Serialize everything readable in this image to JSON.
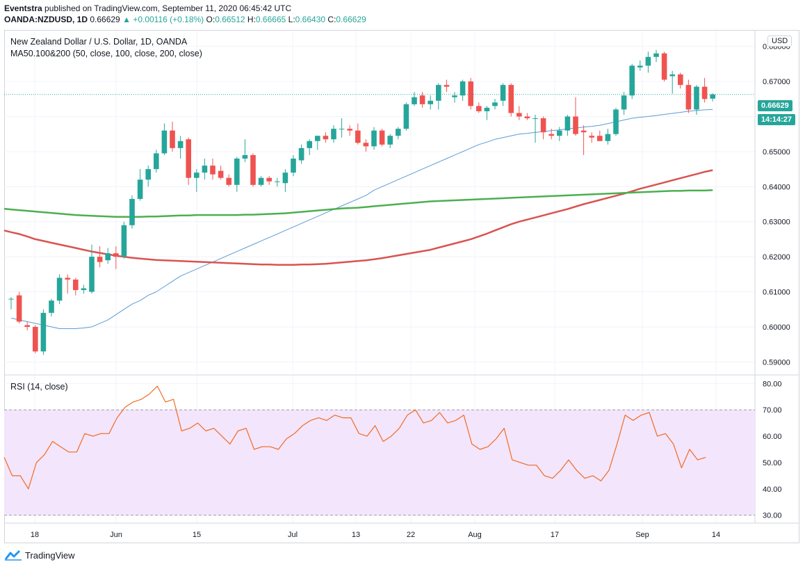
{
  "header": {
    "publisher": "Eventstra",
    "published_text": "published on TradingView.com, September 11, 2020 06:45:42 UTC",
    "symbol": "OANDA:NZDUSD, 1D",
    "last": "0.66629",
    "change_arrow": "▲",
    "change": "+0.00116 (+0.18%)",
    "open_label": "O:",
    "open": "0.66512",
    "high_label": "H:",
    "high": "0.66665",
    "low_label": "L:",
    "low": "0.66430",
    "close_label": "C:",
    "close": "0.66629"
  },
  "legend": {
    "title": "New Zealand Dollar / U.S. Dollar, 1D, OANDA",
    "ma": "MA50.100&200 (50, close, 100, close, 200, close)",
    "rsi": "RSI (14, close)"
  },
  "currency_button": "USD",
  "price_badge": "0.66629",
  "countdown_badge": "14:14:27",
  "footer": {
    "brand": "TradingView",
    "logo_icon": "tradingview-logo-icon"
  },
  "colors": {
    "up": "#26a69a",
    "down": "#ef5350",
    "ma50": "#5b9bd5",
    "ma100": "#d9534f",
    "ma200": "#4caf50",
    "rsi": "#f26b21",
    "rsi_band": "#f3e5fc"
  },
  "chart_data": [
    {
      "type": "candlestick",
      "title": "New Zealand Dollar / U.S. Dollar, 1D, OANDA",
      "ylim": [
        0.5865,
        0.6845
      ],
      "y_ticks": [
        "0.68000",
        "0.67000",
        "0.66000",
        "0.65000",
        "0.64000",
        "0.63000",
        "0.62000",
        "0.61000",
        "0.60000",
        "0.59000"
      ],
      "x_labels": [
        "18",
        "Jun",
        "15",
        "Jul",
        "13",
        "22",
        "Aug",
        "17",
        "Sep",
        "14"
      ],
      "candles": [
        {
          "o": 0.608,
          "h": 0.6085,
          "l": 0.605,
          "c": 0.608
        },
        {
          "o": 0.609,
          "h": 0.61,
          "l": 0.601,
          "c": 0.6015
        },
        {
          "o": 0.6005,
          "h": 0.6015,
          "l": 0.599,
          "c": 0.6
        },
        {
          "o": 0.6,
          "h": 0.6005,
          "l": 0.5925,
          "c": 0.593
        },
        {
          "o": 0.593,
          "h": 0.605,
          "l": 0.592,
          "c": 0.604
        },
        {
          "o": 0.604,
          "h": 0.608,
          "l": 0.603,
          "c": 0.6075
        },
        {
          "o": 0.6075,
          "h": 0.615,
          "l": 0.6065,
          "c": 0.614
        },
        {
          "o": 0.614,
          "h": 0.615,
          "l": 0.6095,
          "c": 0.6135
        },
        {
          "o": 0.6135,
          "h": 0.614,
          "l": 0.609,
          "c": 0.6105
        },
        {
          "o": 0.6105,
          "h": 0.612,
          "l": 0.6095,
          "c": 0.611
        },
        {
          "o": 0.61,
          "h": 0.6235,
          "l": 0.6095,
          "c": 0.62
        },
        {
          "o": 0.62,
          "h": 0.623,
          "l": 0.617,
          "c": 0.6185
        },
        {
          "o": 0.619,
          "h": 0.6225,
          "l": 0.618,
          "c": 0.621
        },
        {
          "o": 0.621,
          "h": 0.623,
          "l": 0.6165,
          "c": 0.62
        },
        {
          "o": 0.62,
          "h": 0.63,
          "l": 0.6195,
          "c": 0.629
        },
        {
          "o": 0.629,
          "h": 0.6375,
          "l": 0.628,
          "c": 0.6365
        },
        {
          "o": 0.6365,
          "h": 0.645,
          "l": 0.636,
          "c": 0.642
        },
        {
          "o": 0.642,
          "h": 0.646,
          "l": 0.64,
          "c": 0.645
        },
        {
          "o": 0.645,
          "h": 0.6505,
          "l": 0.644,
          "c": 0.6495
        },
        {
          "o": 0.6495,
          "h": 0.658,
          "l": 0.649,
          "c": 0.656
        },
        {
          "o": 0.656,
          "h": 0.6585,
          "l": 0.65,
          "c": 0.651
        },
        {
          "o": 0.651,
          "h": 0.6545,
          "l": 0.648,
          "c": 0.653
        },
        {
          "o": 0.6535,
          "h": 0.654,
          "l": 0.6405,
          "c": 0.6425
        },
        {
          "o": 0.6425,
          "h": 0.645,
          "l": 0.6385,
          "c": 0.644
        },
        {
          "o": 0.644,
          "h": 0.648,
          "l": 0.642,
          "c": 0.646
        },
        {
          "o": 0.646,
          "h": 0.648,
          "l": 0.642,
          "c": 0.6435
        },
        {
          "o": 0.6445,
          "h": 0.646,
          "l": 0.642,
          "c": 0.6425
        },
        {
          "o": 0.6425,
          "h": 0.6435,
          "l": 0.64,
          "c": 0.6405
        },
        {
          "o": 0.6405,
          "h": 0.6485,
          "l": 0.6385,
          "c": 0.648
        },
        {
          "o": 0.648,
          "h": 0.6535,
          "l": 0.647,
          "c": 0.649
        },
        {
          "o": 0.649,
          "h": 0.6495,
          "l": 0.64,
          "c": 0.6405
        },
        {
          "o": 0.6405,
          "h": 0.643,
          "l": 0.64,
          "c": 0.6425
        },
        {
          "o": 0.6425,
          "h": 0.643,
          "l": 0.6405,
          "c": 0.6415
        },
        {
          "o": 0.6415,
          "h": 0.6425,
          "l": 0.64,
          "c": 0.6415
        },
        {
          "o": 0.641,
          "h": 0.645,
          "l": 0.6385,
          "c": 0.644
        },
        {
          "o": 0.644,
          "h": 0.649,
          "l": 0.643,
          "c": 0.648
        },
        {
          "o": 0.6475,
          "h": 0.652,
          "l": 0.6465,
          "c": 0.651
        },
        {
          "o": 0.651,
          "h": 0.6535,
          "l": 0.649,
          "c": 0.653
        },
        {
          "o": 0.653,
          "h": 0.6545,
          "l": 0.6505,
          "c": 0.6545
        },
        {
          "o": 0.6545,
          "h": 0.6555,
          "l": 0.6525,
          "c": 0.6535
        },
        {
          "o": 0.6535,
          "h": 0.6575,
          "l": 0.6525,
          "c": 0.6565
        },
        {
          "o": 0.6565,
          "h": 0.6595,
          "l": 0.654,
          "c": 0.6565
        },
        {
          "o": 0.6565,
          "h": 0.6575,
          "l": 0.6545,
          "c": 0.656
        },
        {
          "o": 0.656,
          "h": 0.658,
          "l": 0.652,
          "c": 0.6525
        },
        {
          "o": 0.6525,
          "h": 0.6535,
          "l": 0.65,
          "c": 0.6515
        },
        {
          "o": 0.6515,
          "h": 0.657,
          "l": 0.6505,
          "c": 0.656
        },
        {
          "o": 0.656,
          "h": 0.6565,
          "l": 0.6515,
          "c": 0.652
        },
        {
          "o": 0.652,
          "h": 0.655,
          "l": 0.651,
          "c": 0.6545
        },
        {
          "o": 0.6545,
          "h": 0.657,
          "l": 0.6535,
          "c": 0.6565
        },
        {
          "o": 0.6565,
          "h": 0.664,
          "l": 0.656,
          "c": 0.6635
        },
        {
          "o": 0.6635,
          "h": 0.667,
          "l": 0.663,
          "c": 0.6655
        },
        {
          "o": 0.666,
          "h": 0.667,
          "l": 0.6625,
          "c": 0.6635
        },
        {
          "o": 0.6635,
          "h": 0.666,
          "l": 0.662,
          "c": 0.6645
        },
        {
          "o": 0.6645,
          "h": 0.6695,
          "l": 0.662,
          "c": 0.669
        },
        {
          "o": 0.669,
          "h": 0.6705,
          "l": 0.667,
          "c": 0.6685
        },
        {
          "o": 0.6655,
          "h": 0.667,
          "l": 0.664,
          "c": 0.666
        },
        {
          "o": 0.666,
          "h": 0.6705,
          "l": 0.6645,
          "c": 0.67
        },
        {
          "o": 0.67,
          "h": 0.671,
          "l": 0.662,
          "c": 0.663
        },
        {
          "o": 0.663,
          "h": 0.664,
          "l": 0.661,
          "c": 0.6615
        },
        {
          "o": 0.6615,
          "h": 0.663,
          "l": 0.659,
          "c": 0.6625
        },
        {
          "o": 0.663,
          "h": 0.665,
          "l": 0.662,
          "c": 0.664
        },
        {
          "o": 0.6645,
          "h": 0.6695,
          "l": 0.663,
          "c": 0.669
        },
        {
          "o": 0.669,
          "h": 0.6695,
          "l": 0.66,
          "c": 0.661
        },
        {
          "o": 0.661,
          "h": 0.663,
          "l": 0.659,
          "c": 0.66
        },
        {
          "o": 0.66,
          "h": 0.661,
          "l": 0.659,
          "c": 0.6595
        },
        {
          "o": 0.6595,
          "h": 0.6605,
          "l": 0.6525,
          "c": 0.6595
        },
        {
          "o": 0.6595,
          "h": 0.66,
          "l": 0.6535,
          "c": 0.6555
        },
        {
          "o": 0.655,
          "h": 0.6565,
          "l": 0.6535,
          "c": 0.6545
        },
        {
          "o": 0.6545,
          "h": 0.657,
          "l": 0.653,
          "c": 0.656
        },
        {
          "o": 0.656,
          "h": 0.6605,
          "l": 0.6545,
          "c": 0.66
        },
        {
          "o": 0.66,
          "h": 0.6655,
          "l": 0.6545,
          "c": 0.655
        },
        {
          "o": 0.656,
          "h": 0.6575,
          "l": 0.649,
          "c": 0.6555
        },
        {
          "o": 0.6545,
          "h": 0.6555,
          "l": 0.6525,
          "c": 0.654
        },
        {
          "o": 0.6545,
          "h": 0.656,
          "l": 0.653,
          "c": 0.653
        },
        {
          "o": 0.653,
          "h": 0.6565,
          "l": 0.652,
          "c": 0.655
        },
        {
          "o": 0.655,
          "h": 0.6625,
          "l": 0.6545,
          "c": 0.662
        },
        {
          "o": 0.662,
          "h": 0.667,
          "l": 0.6605,
          "c": 0.666
        },
        {
          "o": 0.666,
          "h": 0.675,
          "l": 0.665,
          "c": 0.6745
        },
        {
          "o": 0.674,
          "h": 0.676,
          "l": 0.673,
          "c": 0.6745
        },
        {
          "o": 0.6745,
          "h": 0.6785,
          "l": 0.6725,
          "c": 0.677
        },
        {
          "o": 0.677,
          "h": 0.679,
          "l": 0.6755,
          "c": 0.678
        },
        {
          "o": 0.678,
          "h": 0.6785,
          "l": 0.67,
          "c": 0.6705
        },
        {
          "o": 0.6715,
          "h": 0.673,
          "l": 0.6665,
          "c": 0.672
        },
        {
          "o": 0.672,
          "h": 0.6725,
          "l": 0.668,
          "c": 0.669
        },
        {
          "o": 0.669,
          "h": 0.6705,
          "l": 0.661,
          "c": 0.662
        },
        {
          "o": 0.662,
          "h": 0.669,
          "l": 0.6605,
          "c": 0.6685
        },
        {
          "o": 0.6685,
          "h": 0.671,
          "l": 0.664,
          "c": 0.665
        },
        {
          "o": 0.6651,
          "h": 0.66665,
          "l": 0.6643,
          "c": 0.66629
        }
      ],
      "series": [
        {
          "name": "MA50",
          "color": "#5b9bd5",
          "values": [
            0.6025,
            0.602,
            0.6015,
            0.601,
            0.6005,
            0.6,
            0.5995,
            0.5995,
            0.5995,
            0.5997,
            0.6,
            0.601,
            0.602,
            0.6035,
            0.605,
            0.6065,
            0.6075,
            0.609,
            0.61,
            0.6115,
            0.613,
            0.6145,
            0.6155,
            0.6165,
            0.6175,
            0.6185,
            0.6195,
            0.6205,
            0.6215,
            0.6225,
            0.6235,
            0.6245,
            0.6255,
            0.6265,
            0.6275,
            0.6285,
            0.6295,
            0.6305,
            0.6315,
            0.6325,
            0.6335,
            0.6345,
            0.6355,
            0.6365,
            0.6375,
            0.639,
            0.64,
            0.641,
            0.642,
            0.643,
            0.644,
            0.645,
            0.646,
            0.647,
            0.648,
            0.649,
            0.65,
            0.651,
            0.652,
            0.6527,
            0.6535,
            0.654,
            0.6545,
            0.655,
            0.6552,
            0.6555,
            0.6557,
            0.656,
            0.6562,
            0.6565,
            0.6567,
            0.657,
            0.6572,
            0.6575,
            0.658,
            0.6585,
            0.659,
            0.6595,
            0.6598,
            0.66,
            0.6603,
            0.6606,
            0.6609,
            0.6612,
            0.6615,
            0.6617,
            0.6619,
            0.662
          ]
        },
        {
          "name": "MA100",
          "color": "#d9534f",
          "values": [
            0.627,
            0.6265,
            0.6258,
            0.625,
            0.6245,
            0.624,
            0.6235,
            0.623,
            0.6225,
            0.622,
            0.6215,
            0.6211,
            0.6207,
            0.6203,
            0.62,
            0.6197,
            0.6195,
            0.6193,
            0.6191,
            0.619,
            0.6189,
            0.6188,
            0.6187,
            0.6186,
            0.6185,
            0.6184,
            0.6183,
            0.6182,
            0.6181,
            0.618,
            0.6179,
            0.6178,
            0.6178,
            0.6177,
            0.6177,
            0.6177,
            0.6178,
            0.6178,
            0.6179,
            0.618,
            0.6182,
            0.6184,
            0.6186,
            0.6188,
            0.619,
            0.6193,
            0.6196,
            0.62,
            0.6204,
            0.6208,
            0.6212,
            0.6216,
            0.622,
            0.6226,
            0.6232,
            0.6238,
            0.6244,
            0.625,
            0.6258,
            0.6266,
            0.6275,
            0.6284,
            0.6293,
            0.63,
            0.6306,
            0.6312,
            0.6318,
            0.6324,
            0.633,
            0.6336,
            0.6343,
            0.635,
            0.6356,
            0.6362,
            0.6368,
            0.6374,
            0.638,
            0.6387,
            0.6394,
            0.64,
            0.6406,
            0.6412,
            0.6418,
            0.6424,
            0.643,
            0.6436,
            0.6442,
            0.6447
          ]
        },
        {
          "name": "MA200",
          "color": "#4caf50",
          "values": [
            0.6335,
            0.6333,
            0.6331,
            0.6329,
            0.6327,
            0.6325,
            0.6323,
            0.6321,
            0.6319,
            0.6318,
            0.6317,
            0.6316,
            0.6315,
            0.6314,
            0.6314,
            0.6314,
            0.6314,
            0.6315,
            0.6315,
            0.6316,
            0.6317,
            0.6318,
            0.6318,
            0.6319,
            0.6319,
            0.6319,
            0.6319,
            0.6319,
            0.6319,
            0.632,
            0.632,
            0.6321,
            0.6322,
            0.6323,
            0.6324,
            0.6326,
            0.6328,
            0.633,
            0.6332,
            0.6334,
            0.6336,
            0.6338,
            0.6339,
            0.634,
            0.6342,
            0.6344,
            0.6346,
            0.6348,
            0.635,
            0.6352,
            0.6354,
            0.6356,
            0.6358,
            0.6359,
            0.636,
            0.6361,
            0.6362,
            0.6363,
            0.6364,
            0.6365,
            0.6366,
            0.6367,
            0.6368,
            0.6369,
            0.637,
            0.6371,
            0.6372,
            0.6373,
            0.6374,
            0.6375,
            0.6376,
            0.6377,
            0.6378,
            0.6379,
            0.638,
            0.6381,
            0.6382,
            0.6383,
            0.6384,
            0.6385,
            0.6386,
            0.6387,
            0.6388,
            0.6388,
            0.6389,
            0.6389,
            0.6389,
            0.639
          ]
        }
      ]
    },
    {
      "type": "line",
      "title": "RSI (14, close)",
      "ylim": [
        27,
        83
      ],
      "y_ticks": [
        "80.00",
        "70.00",
        "60.00",
        "50.00",
        "40.00",
        "30.00"
      ],
      "bands": [
        30,
        70
      ],
      "series": [
        {
          "name": "RSI",
          "color": "#f26b21",
          "values": [
            52,
            45,
            45,
            40,
            50,
            53,
            58,
            56,
            54,
            54,
            61,
            60,
            61,
            61,
            67,
            71,
            73,
            74,
            76,
            79,
            73,
            74,
            62,
            63,
            65,
            62,
            63,
            60,
            57,
            62,
            63,
            55,
            56,
            56,
            55,
            59,
            61,
            64,
            66,
            67,
            66,
            68,
            67,
            67,
            61,
            60,
            64,
            58,
            60,
            63,
            68,
            70,
            65,
            66,
            69,
            65,
            66,
            68,
            57,
            55,
            56,
            59,
            63,
            51,
            50,
            49,
            49,
            45,
            44,
            47,
            51,
            47,
            44,
            45,
            43,
            47,
            57,
            68,
            66,
            68,
            69,
            60,
            61,
            57,
            48,
            55,
            51,
            52
          ]
        }
      ]
    }
  ]
}
